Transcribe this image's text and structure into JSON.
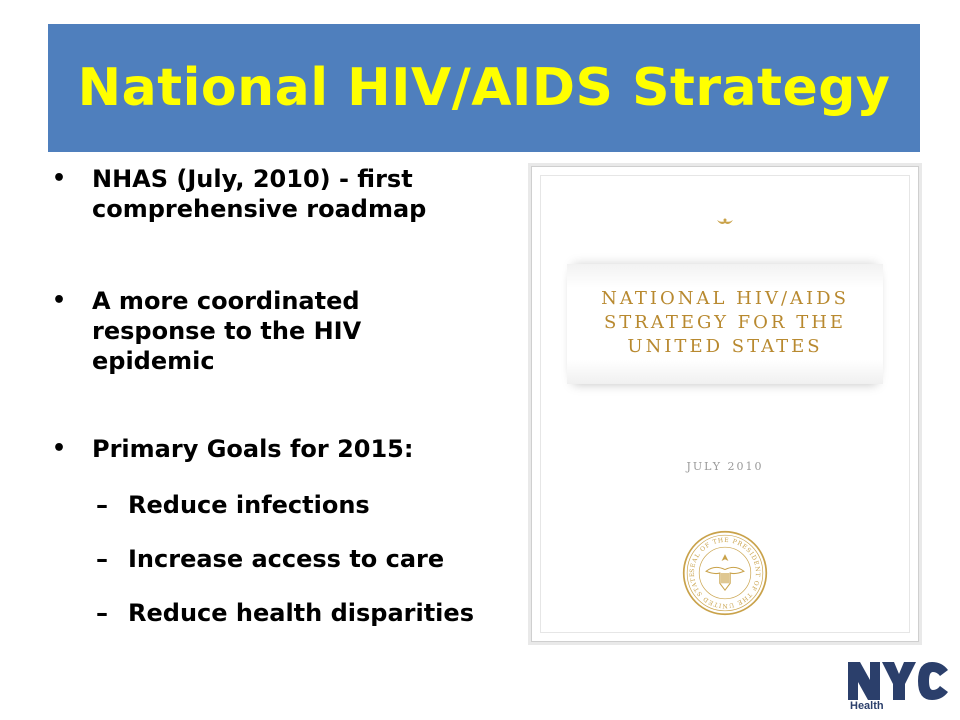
{
  "slide": {
    "title": "National HIV/AIDS Strategy",
    "bullets": [
      {
        "text": "NHAS (July, 2010) - first comprehensive roadmap"
      },
      {
        "text": "A more coordinated response to the HIV epidemic"
      },
      {
        "text": "Primary Goals for 2015:"
      }
    ],
    "sub_bullets": [
      {
        "marker": "–",
        "text": "Reduce infections"
      },
      {
        "marker": "–",
        "text": "Increase access to care"
      },
      {
        "marker": "–",
        "text": "Reduce health disparities"
      }
    ],
    "bullet_marker": "•"
  },
  "cover": {
    "title_line1": "NATIONAL HIV/AIDS",
    "title_line2": "STRATEGY FOR THE",
    "title_line3": "UNITED STATES",
    "date": "JULY 2010",
    "seal_text": "SEAL OF THE PRESIDENT OF THE UNITED STATES"
  },
  "logo": {
    "name": "NYC",
    "subtitle": "Health"
  },
  "colors": {
    "banner": "#4f7fbd",
    "title": "#ffff00",
    "cover_gold": "#b8892f",
    "logo_navy": "#2b3f6b"
  }
}
